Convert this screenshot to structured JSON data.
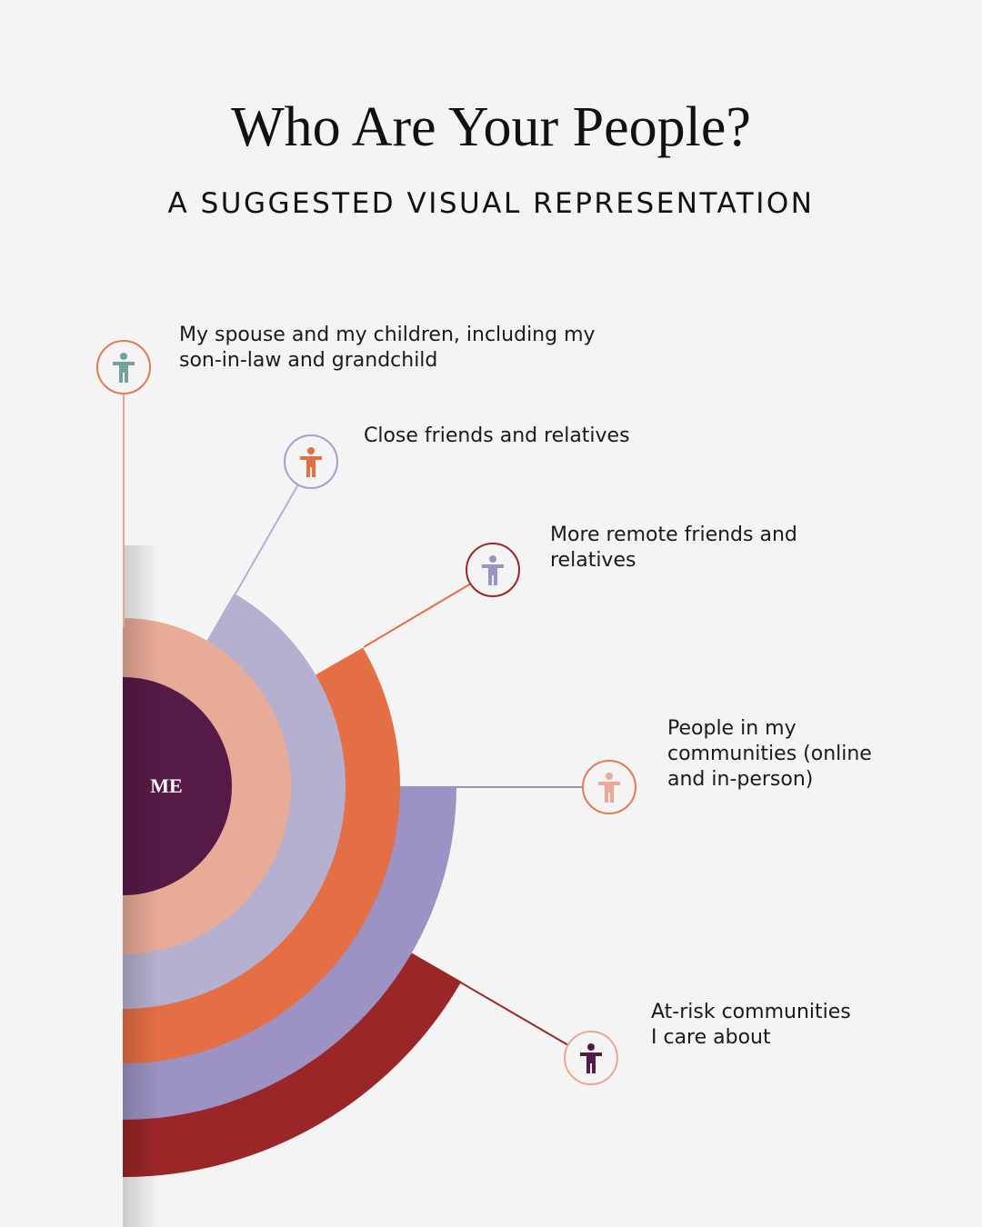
{
  "header": {
    "title": "Who Are Your People?",
    "subtitle": "A SUGGESTED VISUAL REPRESENTATION"
  },
  "center": {
    "label": "ME"
  },
  "nodes": [
    {
      "lines": [
        "My spouse and my children, including my",
        "son-in-law and grandchild"
      ]
    },
    {
      "lines": [
        "Close friends and relatives"
      ]
    },
    {
      "lines": [
        "More remote friends and",
        "relatives"
      ]
    },
    {
      "lines": [
        "People in my",
        "communities (online",
        "and in-person)"
      ]
    },
    {
      "lines": [
        "At-risk communities",
        "I care about"
      ]
    }
  ]
}
